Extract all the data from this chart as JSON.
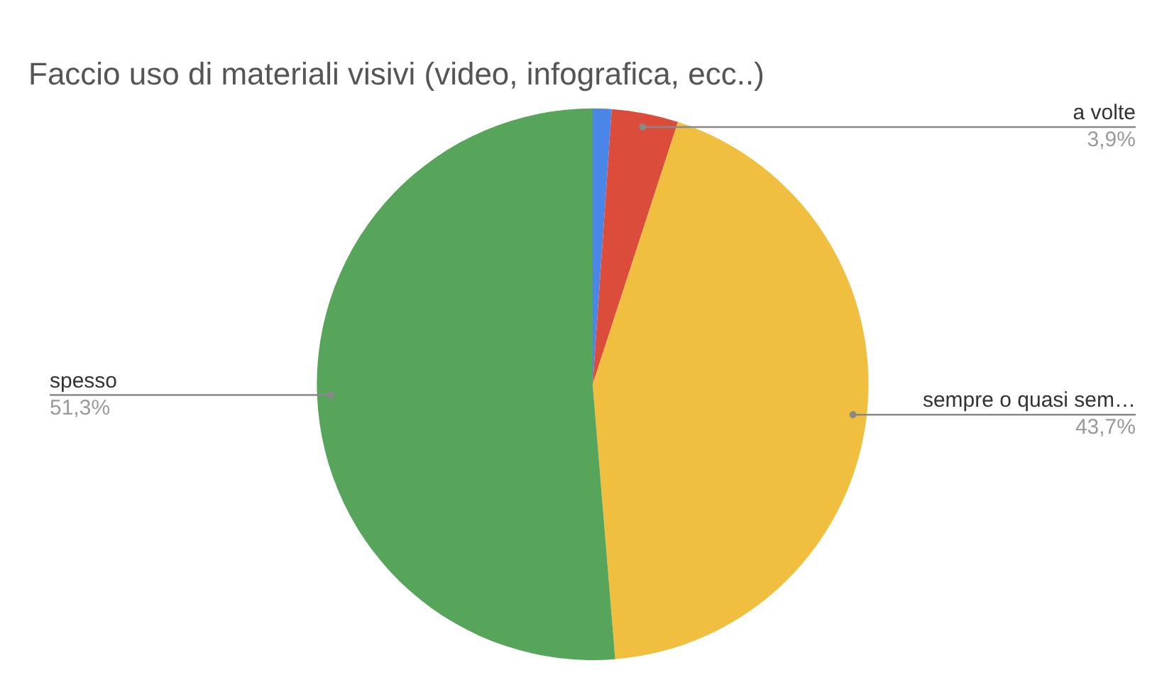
{
  "chart_data": {
    "type": "pie",
    "title": "Faccio uso di materiali visivi (video, infografica, ecc..)",
    "categories": [
      null,
      "a volte",
      "sempre o quasi sem…",
      "spesso"
    ],
    "values": [
      1.1,
      3.9,
      43.7,
      51.3
    ],
    "value_labels": [
      null,
      "3,9%",
      "43,7%",
      "51,3%"
    ],
    "colors": [
      "#4a86e8",
      "#dc4c3b",
      "#f1bf40",
      "#57a55a"
    ],
    "legend": false
  }
}
